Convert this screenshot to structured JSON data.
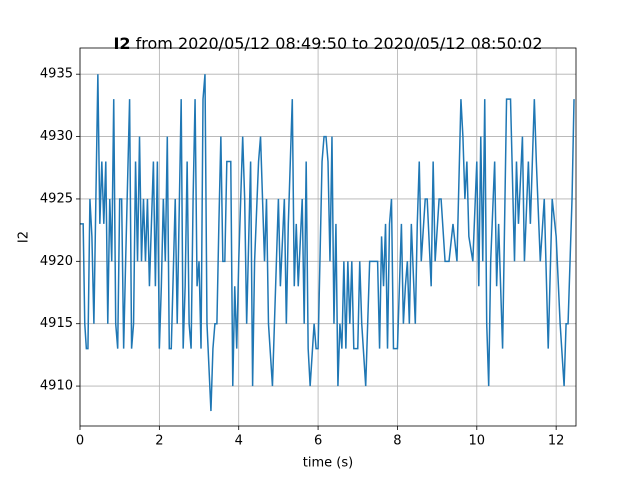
{
  "chart_data": {
    "type": "line",
    "title": [
      "I2",
      "from 2020/05/12 08:49:50 to 2020/05/12 08:50:02"
    ],
    "xlabel": "time (s)",
    "ylabel": "I2",
    "x": [
      0,
      0.08,
      0.12,
      0.16,
      0.2,
      0.25,
      0.3,
      0.35,
      0.45,
      0.5,
      0.55,
      0.6,
      0.65,
      0.7,
      0.75,
      0.8,
      0.85,
      0.9,
      0.95,
      1.0,
      1.05,
      1.1,
      1.15,
      1.25,
      1.3,
      1.35,
      1.4,
      1.45,
      1.5,
      1.55,
      1.6,
      1.65,
      1.7,
      1.75,
      1.8,
      1.85,
      1.9,
      1.95,
      2.0,
      2.05,
      2.1,
      2.15,
      2.2,
      2.25,
      2.3,
      2.4,
      2.45,
      2.55,
      2.6,
      2.65,
      2.7,
      2.75,
      2.8,
      2.85,
      2.9,
      2.95,
      3.0,
      3.05,
      3.1,
      3.15,
      3.2,
      3.3,
      3.35,
      3.4,
      3.45,
      3.5,
      3.55,
      3.6,
      3.65,
      3.7,
      3.8,
      3.85,
      3.9,
      3.95,
      4.0,
      4.05,
      4.1,
      4.15,
      4.2,
      4.3,
      4.35,
      4.4,
      4.5,
      4.55,
      4.6,
      4.65,
      4.7,
      4.75,
      4.85,
      4.9,
      5.0,
      5.05,
      5.15,
      5.2,
      5.25,
      5.35,
      5.4,
      5.45,
      5.5,
      5.6,
      5.65,
      5.7,
      5.75,
      5.8,
      5.9,
      5.95,
      6.0,
      6.1,
      6.15,
      6.2,
      6.25,
      6.3,
      6.35,
      6.4,
      6.45,
      6.5,
      6.55,
      6.6,
      6.65,
      6.7,
      6.75,
      6.8,
      6.85,
      6.9,
      7.0,
      7.05,
      7.1,
      7.2,
      7.3,
      7.4,
      7.5,
      7.55,
      7.6,
      7.65,
      7.7,
      7.75,
      7.8,
      7.85,
      7.9,
      8.0,
      8.1,
      8.15,
      8.2,
      8.25,
      8.3,
      8.35,
      8.45,
      8.5,
      8.55,
      8.6,
      8.7,
      8.75,
      8.85,
      8.9,
      8.95,
      9.05,
      9.1,
      9.2,
      9.3,
      9.4,
      9.5,
      9.6,
      9.65,
      9.7,
      9.75,
      9.8,
      9.9,
      10.0,
      10.05,
      10.1,
      10.15,
      10.2,
      10.25,
      10.3,
      10.35,
      10.45,
      10.5,
      10.55,
      10.65,
      10.75,
      10.85,
      10.95,
      11.0,
      11.05,
      11.15,
      11.2,
      11.3,
      11.35,
      11.45,
      11.5,
      11.6,
      11.7,
      11.8,
      11.9,
      12.0,
      12.1,
      12.2,
      12.25,
      12.3,
      12.4,
      12.45
    ],
    "values": [
      4923,
      4923,
      4915,
      4913,
      4913,
      4925,
      4922,
      4915,
      4935,
      4923,
      4928,
      4923,
      4928,
      4915,
      4925,
      4920,
      4933,
      4915,
      4913,
      4925,
      4925,
      4913,
      4920,
      4933,
      4913,
      4915,
      4928,
      4920,
      4930,
      4920,
      4925,
      4920,
      4925,
      4918,
      4923,
      4928,
      4918,
      4928,
      4913,
      4918,
      4925,
      4920,
      4930,
      4913,
      4913,
      4925,
      4915,
      4933,
      4913,
      4918,
      4928,
      4915,
      4913,
      4925,
      4933,
      4918,
      4920,
      4913,
      4933,
      4935,
      4915,
      4908,
      4913,
      4915,
      4915,
      4923,
      4930,
      4920,
      4920,
      4928,
      4928,
      4910,
      4918,
      4913,
      4920,
      4925,
      4930,
      4925,
      4915,
      4928,
      4910,
      4920,
      4928,
      4930,
      4925,
      4920,
      4925,
      4915,
      4910,
      4915,
      4925,
      4918,
      4925,
      4915,
      4923,
      4933,
      4918,
      4923,
      4918,
      4925,
      4915,
      4928,
      4913,
      4910,
      4915,
      4913,
      4913,
      4928,
      4930,
      4930,
      4928,
      4920,
      4930,
      4915,
      4923,
      4910,
      4915,
      4913,
      4920,
      4913,
      4920,
      4915,
      4920,
      4913,
      4913,
      4920,
      4915,
      4910,
      4920,
      4920,
      4920,
      4913,
      4922,
      4918,
      4923,
      4913,
      4923,
      4925,
      4913,
      4913,
      4923,
      4915,
      4918,
      4920,
      4915,
      4923,
      4915,
      4923,
      4928,
      4920,
      4925,
      4925,
      4918,
      4928,
      4920,
      4925,
      4925,
      4920,
      4920,
      4923,
      4920,
      4933,
      4930,
      4925,
      4928,
      4922,
      4920,
      4928,
      4918,
      4930,
      4920,
      4933,
      4915,
      4910,
      4920,
      4928,
      4918,
      4923,
      4913,
      4933,
      4933,
      4920,
      4928,
      4923,
      4930,
      4920,
      4928,
      4923,
      4933,
      4928,
      4920,
      4925,
      4913,
      4925,
      4922,
      4915,
      4910,
      4915,
      4915,
      4925,
      4933
    ],
    "color": "#1f77b4",
    "xlim": [
      0,
      12.5
    ],
    "xticks": [
      0,
      2,
      4,
      6,
      8,
      10,
      12
    ],
    "ylim": [
      4906.8,
      4937.1
    ],
    "yticks": [
      4910,
      4915,
      4920,
      4925,
      4930,
      4935
    ],
    "grid": true
  }
}
